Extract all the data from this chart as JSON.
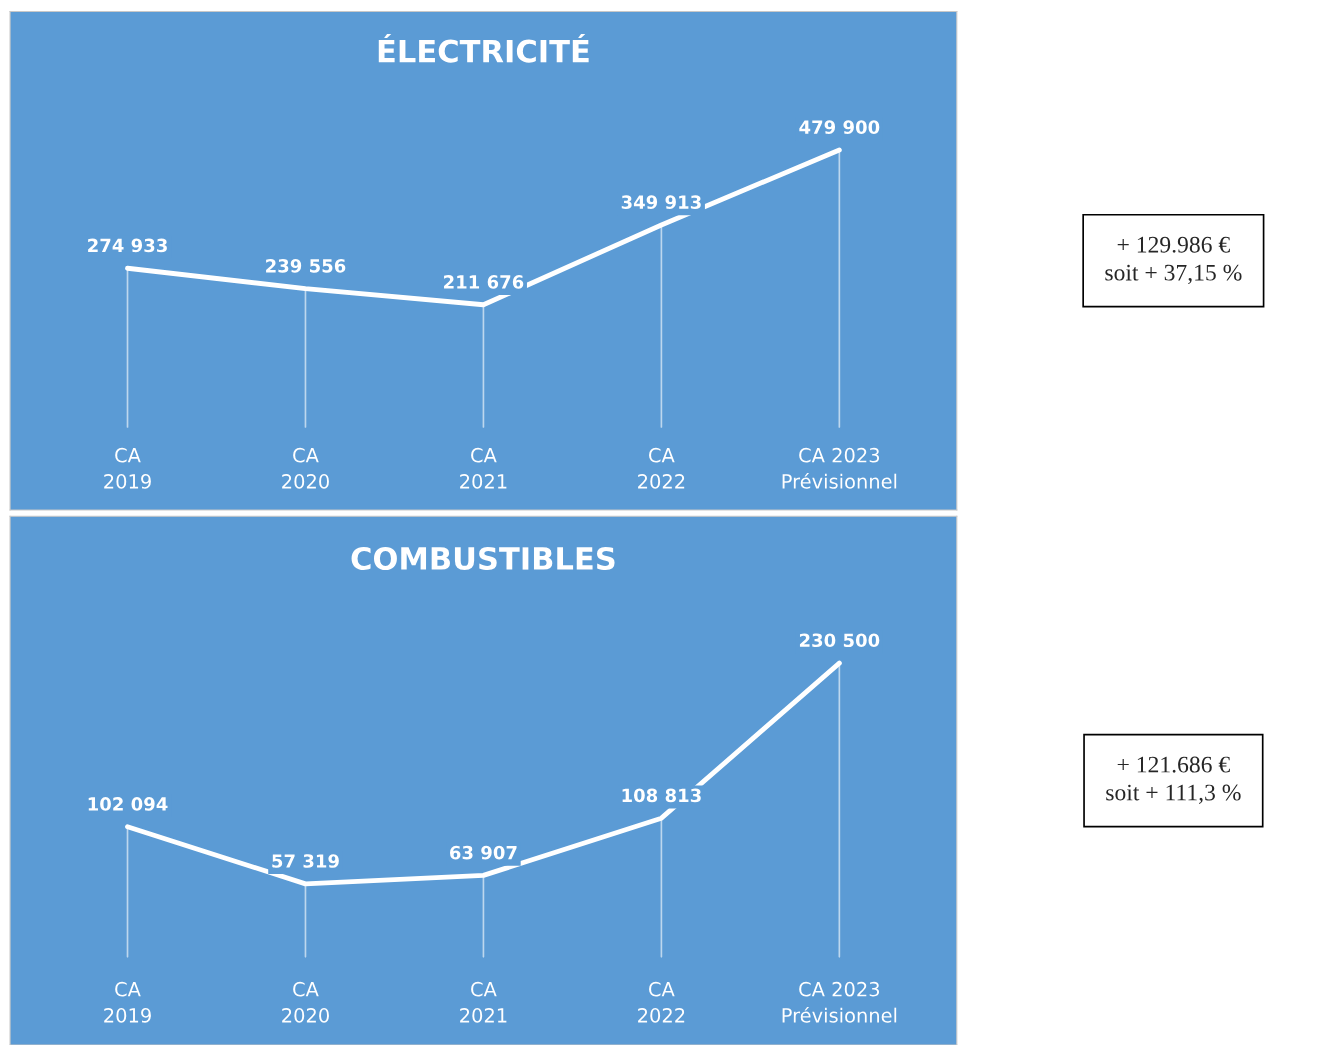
{
  "chart_data": [
    {
      "type": "line",
      "grid": "x",
      "title": "ÉLECTRICITÉ",
      "categories": [
        "CA\n2019",
        "CA\n2020",
        "CA\n2021",
        "CA\n2022",
        "CA 2023\nPrévisionnel"
      ],
      "series": [
        {
          "color": "#ffffff",
          "values": [
            274933,
            239556,
            211676,
            349913,
            479900
          ],
          "value_labels": [
            "274 933",
            "239 556",
            "211 676",
            "349 913",
            "479 900"
          ]
        }
      ],
      "annotations": [
        "+ 129.986 €\nsoit + 37,15 %"
      ]
    },
    {
      "type": "line",
      "grid": "x",
      "title": "COMBUSTIBLES",
      "categories": [
        "CA\n2019",
        "CA\n2020",
        "CA\n2021",
        "CA\n2022",
        "CA 2023\nPrévisionnel"
      ],
      "series": [
        {
          "color": "#ffffff",
          "values": [
            102094,
            57319,
            63907,
            108813,
            230500
          ],
          "value_labels": [
            "102 094",
            "57 319",
            "63 907",
            "108 813",
            "230 500"
          ]
        }
      ],
      "annotations": [
        "+ 121.686 €\nsoit + 111,3 %"
      ]
    }
  ]
}
